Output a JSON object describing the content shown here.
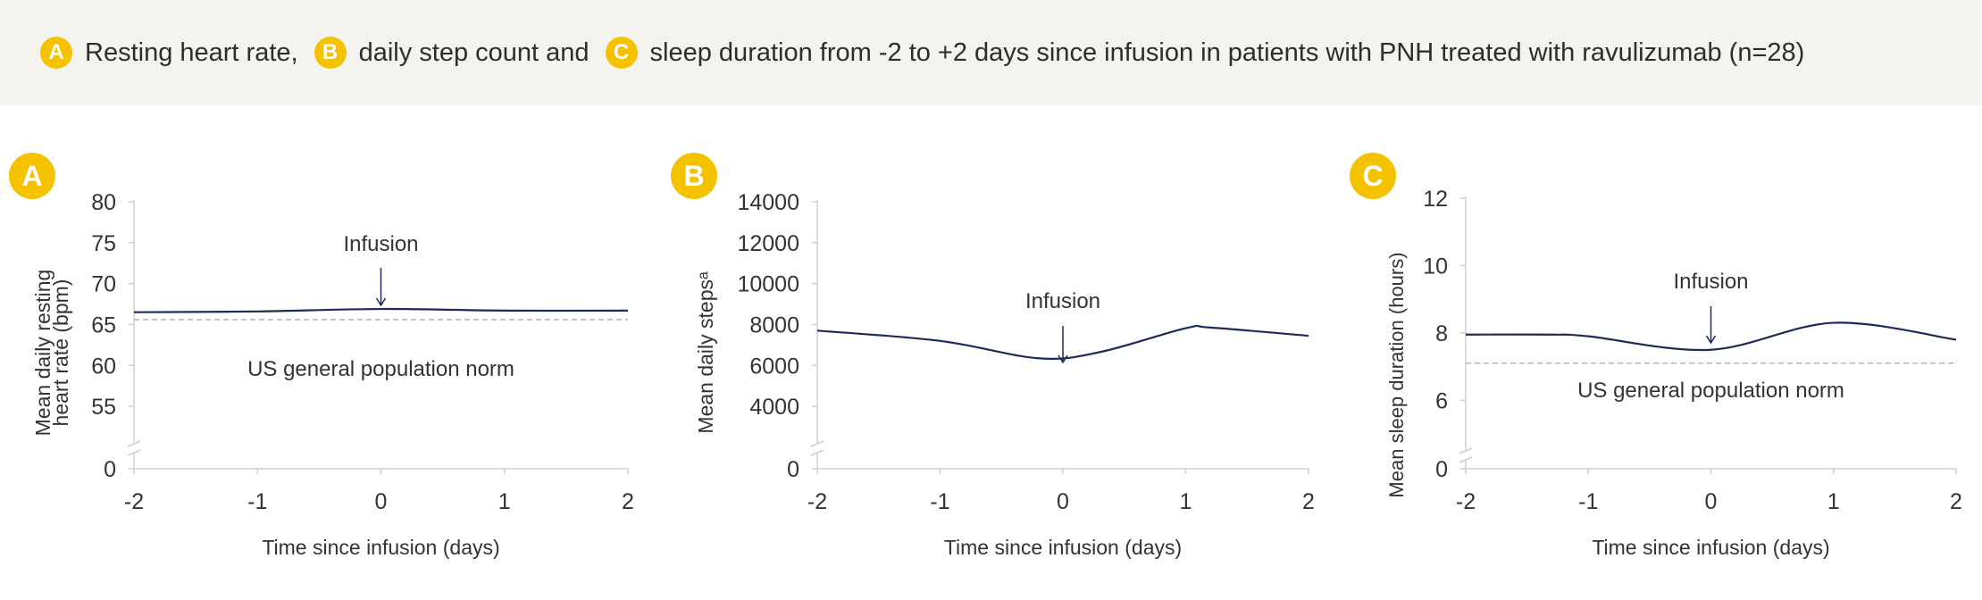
{
  "header": {
    "parts": [
      {
        "badge": "A",
        "text": "Resting heart rate,"
      },
      {
        "badge": "B",
        "text": "daily step count and"
      },
      {
        "badge": "C",
        "text": "sleep duration from -2 to +2 days since infusion in patients with PNH treated with ravulizumab (n=28)"
      }
    ]
  },
  "colors": {
    "line": "#1f2a5a",
    "badge": "#f5c200",
    "axis": "#cfcfcf",
    "norm": "#9a9a9a",
    "header_bg": "#f5f3ef"
  },
  "chart_data": [
    {
      "type": "line",
      "panel_label": "A",
      "xlabel": "Time since infusion (days)",
      "ylabel": [
        "Mean daily resting",
        "heart rate (bpm)"
      ],
      "x_ticks": [
        "-2",
        "-1",
        "0",
        "1",
        "2"
      ],
      "y_ticks": [
        "80",
        "75",
        "70",
        "65",
        "60",
        "55"
      ],
      "y_zero": "0",
      "xlim": [
        -2,
        2
      ],
      "ylim": [
        52.5,
        80
      ],
      "axis_break": true,
      "series": [
        {
          "x": [
            -2,
            -1,
            0,
            1,
            2
          ],
          "y": [
            66.5,
            66.6,
            66.9,
            66.7,
            66.7
          ]
        }
      ],
      "norm_value": 65.6,
      "norm_label": "US general population norm",
      "annotation": {
        "text": "Infusion",
        "x": 0
      }
    },
    {
      "type": "line",
      "panel_label": "B",
      "xlabel": "Time since infusion (days)",
      "ylabel": [
        "Mean daily stepsᵃ"
      ],
      "x_ticks": [
        "-2",
        "-1",
        "0",
        "1",
        "2"
      ],
      "y_ticks": [
        "14000",
        "12000",
        "10000",
        "8000",
        "6000",
        "4000"
      ],
      "y_zero": "0",
      "xlim": [
        -2,
        2
      ],
      "ylim": [
        3000,
        14000
      ],
      "axis_break": true,
      "series": [
        {
          "x": [
            -2,
            -1,
            -0.2,
            0.3,
            1,
            1.2,
            2
          ],
          "y": [
            7700,
            7200,
            6350,
            6650,
            7820,
            7850,
            7450
          ]
        }
      ],
      "annotation": {
        "text": "Infusion",
        "x": 0
      }
    },
    {
      "type": "line",
      "panel_label": "C",
      "xlabel": "Time since infusion (days)",
      "ylabel": [
        "Mean sleep duration (hours)"
      ],
      "x_ticks": [
        "-2",
        "-1",
        "0",
        "1",
        "2"
      ],
      "y_ticks": [
        "12",
        "10",
        "8",
        "6"
      ],
      "y_zero": "0",
      "xlim": [
        -2,
        2
      ],
      "ylim": [
        5,
        12
      ],
      "axis_break": true,
      "series": [
        {
          "x": [
            -2,
            -1.3,
            -1,
            0,
            1,
            2
          ],
          "y": [
            7.95,
            7.95,
            7.9,
            7.5,
            8.3,
            7.8
          ]
        }
      ],
      "norm_value": 7.1,
      "norm_label": "US general population norm",
      "annotation": {
        "text": "Infusion",
        "x": 0
      }
    }
  ]
}
